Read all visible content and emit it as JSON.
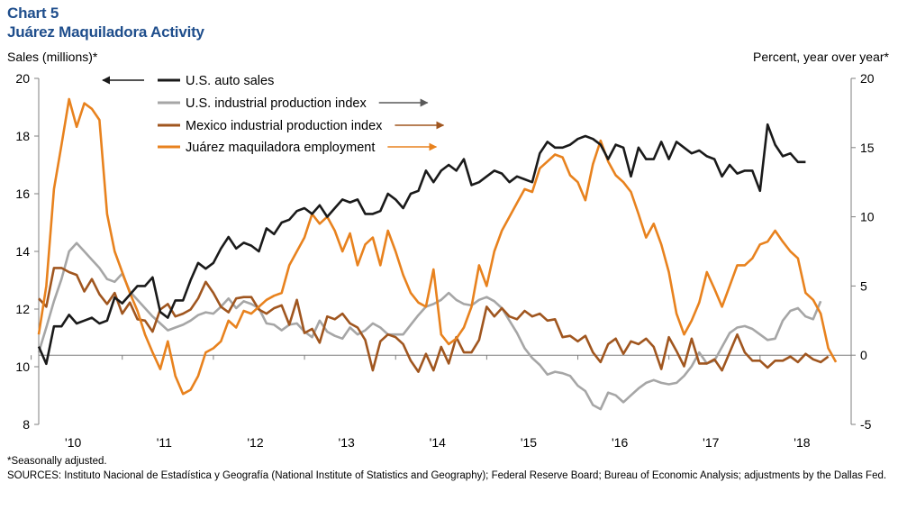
{
  "header": {
    "chart_number": "Chart 5",
    "title": "Juárez Maquiladora Activity"
  },
  "footer": {
    "footnote": "*Seasonally adjusted.",
    "sources": "SOURCES: Instituto Nacional de Estadística y Geografía (National Institute of Statistics and Geography); Federal Reserve Board; Bureau of Economic Analysis; adjustments by the Dallas Fed."
  },
  "colors": {
    "auto": "#1a1a1a",
    "usip": "#a6a6a6",
    "mxip": "#a0561f",
    "juarez": "#e8821e",
    "axis": "#7f7f7f"
  },
  "chart_data": {
    "type": "line",
    "title": "Juárez Maquiladora Activity",
    "left_axis": {
      "label": "Sales (millions)*",
      "min": 8,
      "max": 20,
      "ticks": [
        8,
        10,
        12,
        14,
        16,
        18,
        20
      ]
    },
    "right_axis": {
      "label": "Percent, year over year*",
      "min": -5,
      "max": 20,
      "ticks": [
        -5,
        0,
        5,
        10,
        15,
        20
      ]
    },
    "x_start": 2009.583,
    "x_end": 2018.5,
    "x_ticks": [
      {
        "x": 2010,
        "label": "'10"
      },
      {
        "x": 2011,
        "label": "'11"
      },
      {
        "x": 2012,
        "label": "'12"
      },
      {
        "x": 2013,
        "label": "'13"
      },
      {
        "x": 2014,
        "label": "'14"
      },
      {
        "x": 2015,
        "label": "'15"
      },
      {
        "x": 2016,
        "label": "'16"
      },
      {
        "x": 2017,
        "label": "'17"
      },
      {
        "x": 2018,
        "label": "'18"
      }
    ],
    "grid": false,
    "legend_position": "top-center",
    "series": [
      {
        "name": "U.S. auto sales",
        "axis": "left",
        "color": "#1a1a1a",
        "legend_arrow": "left",
        "x0": 2009.583,
        "step": 0.08333,
        "values": [
          10.7,
          10.1,
          11.4,
          11.4,
          11.8,
          11.5,
          11.6,
          11.7,
          11.5,
          11.6,
          12.4,
          12.2,
          12.5,
          12.8,
          12.8,
          13.1,
          11.9,
          11.7,
          12.3,
          12.3,
          13.0,
          13.6,
          13.4,
          13.6,
          14.1,
          14.5,
          14.1,
          14.3,
          14.2,
          14.0,
          14.8,
          14.6,
          15.0,
          15.1,
          15.4,
          15.5,
          15.3,
          15.6,
          15.2,
          15.5,
          15.8,
          15.7,
          15.8,
          15.3,
          15.3,
          15.4,
          16.0,
          15.8,
          15.5,
          16.0,
          16.1,
          16.8,
          16.4,
          16.8,
          17.0,
          16.8,
          17.2,
          16.3,
          16.4,
          16.6,
          16.8,
          16.7,
          16.4,
          16.6,
          16.5,
          16.4,
          17.4,
          17.8,
          17.6,
          17.6,
          17.7,
          17.9,
          18.0,
          17.9,
          17.7,
          17.2,
          17.7,
          17.6,
          16.6,
          17.6,
          17.2,
          17.2,
          17.8,
          17.2,
          17.8,
          17.6,
          17.4,
          17.5,
          17.3,
          17.2,
          16.6,
          17.0,
          16.7,
          16.8,
          16.8,
          16.1,
          18.4,
          17.7,
          17.3,
          17.4,
          17.1,
          17.1
        ]
      },
      {
        "name": "U.S. industrial production index",
        "axis": "right",
        "color": "#a6a6a6",
        "legend_arrow": "right",
        "x0": 2009.583,
        "step": 0.08333,
        "values": [
          0.2,
          2.0,
          3.9,
          5.5,
          7.5,
          8.1,
          7.5,
          6.9,
          6.3,
          5.5,
          5.3,
          5.9,
          4.6,
          4.0,
          3.4,
          2.8,
          2.3,
          1.8,
          2.0,
          2.2,
          2.5,
          2.9,
          3.1,
          3.0,
          3.5,
          4.1,
          3.4,
          3.9,
          3.7,
          3.4,
          2.3,
          2.2,
          1.8,
          2.2,
          2.3,
          1.7,
          1.3,
          2.5,
          1.7,
          1.4,
          1.2,
          2.0,
          1.5,
          1.8,
          2.3,
          2.0,
          1.5,
          1.5,
          1.5,
          2.2,
          2.9,
          3.5,
          3.7,
          4.0,
          4.5,
          4.0,
          3.7,
          3.6,
          4.0,
          4.2,
          3.9,
          3.4,
          2.5,
          1.6,
          0.5,
          -0.2,
          -0.7,
          -1.4,
          -1.2,
          -1.3,
          -1.5,
          -2.2,
          -2.6,
          -3.6,
          -3.9,
          -2.7,
          -2.9,
          -3.4,
          -2.9,
          -2.4,
          -2.0,
          -1.8,
          -2.0,
          -2.1,
          -2.0,
          -1.5,
          -0.8,
          0.2,
          -0.6,
          -0.4,
          0.6,
          1.6,
          2.0,
          2.1,
          1.9,
          1.5,
          1.1,
          1.2,
          2.5,
          3.2,
          3.4,
          2.8,
          2.6,
          3.9
        ]
      },
      {
        "name": "Mexico industrial production index",
        "axis": "right",
        "color": "#a0561f",
        "legend_arrow": "right",
        "x0": 2009.583,
        "step": 0.08333,
        "values": [
          4.1,
          3.5,
          6.3,
          6.3,
          6.0,
          5.8,
          4.6,
          5.5,
          4.4,
          3.7,
          4.5,
          3.0,
          3.8,
          2.6,
          2.5,
          1.7,
          3.3,
          3.7,
          2.8,
          3.0,
          3.3,
          4.1,
          5.3,
          4.5,
          3.5,
          3.1,
          4.1,
          4.2,
          4.2,
          3.3,
          3.0,
          3.4,
          3.6,
          2.2,
          4.0,
          1.6,
          1.9,
          0.9,
          2.8,
          2.6,
          3.0,
          2.3,
          2.0,
          1.1,
          -1.1,
          1.0,
          1.5,
          1.3,
          0.8,
          -0.4,
          -1.2,
          0.1,
          -1.1,
          0.6,
          -0.6,
          1.3,
          0.2,
          0.2,
          1.1,
          3.5,
          2.8,
          3.4,
          2.8,
          2.6,
          3.2,
          2.8,
          3.0,
          2.5,
          2.6,
          1.3,
          1.4,
          1.0,
          1.4,
          0.2,
          -0.5,
          0.8,
          1.2,
          0.1,
          1.0,
          0.8,
          1.2,
          0.6,
          -1.0,
          1.3,
          0.3,
          -0.8,
          1.2,
          -0.6,
          -0.6,
          -0.3,
          -1.1,
          0.2,
          1.5,
          0.2,
          -0.4,
          -0.4,
          -0.9,
          -0.4,
          -0.4,
          -0.1,
          -0.5,
          0.1,
          -0.3,
          -0.5,
          -0.1
        ]
      },
      {
        "name": "Juárez maquiladora employment",
        "axis": "right",
        "color": "#e8821e",
        "legend_arrow": "right",
        "x0": 2009.583,
        "step": 0.08333,
        "values": [
          1.5,
          5.0,
          12.0,
          15.2,
          18.5,
          16.5,
          18.2,
          17.8,
          17.0,
          10.2,
          7.5,
          6.0,
          4.5,
          3.2,
          1.5,
          0.2,
          -1.0,
          1.0,
          -1.5,
          -2.8,
          -2.5,
          -1.5,
          0.2,
          0.5,
          1.0,
          2.5,
          2.0,
          3.2,
          3.0,
          3.5,
          4.0,
          4.3,
          4.5,
          6.5,
          7.5,
          8.5,
          10.2,
          9.5,
          10.0,
          9.0,
          7.5,
          8.8,
          6.5,
          8.0,
          8.5,
          6.5,
          9.0,
          7.5,
          5.8,
          4.5,
          3.8,
          3.5,
          6.2,
          1.5,
          0.8,
          1.2,
          2.0,
          3.5,
          6.5,
          5.0,
          7.5,
          9.0,
          10.0,
          11.0,
          12.0,
          11.8,
          13.5,
          14.0,
          14.5,
          14.3,
          13.0,
          12.5,
          11.2,
          13.8,
          15.5,
          14.0,
          13.0,
          12.5,
          11.8,
          10.2,
          8.5,
          9.5,
          8.0,
          6.0,
          3.0,
          1.5,
          2.5,
          3.8,
          6.0,
          4.8,
          3.5,
          5.0,
          6.5,
          6.5,
          7.0,
          8.0,
          8.2,
          9.0,
          8.2,
          7.5,
          7.0,
          4.5,
          4.0,
          3.0,
          0.5,
          -0.5
        ]
      }
    ]
  }
}
